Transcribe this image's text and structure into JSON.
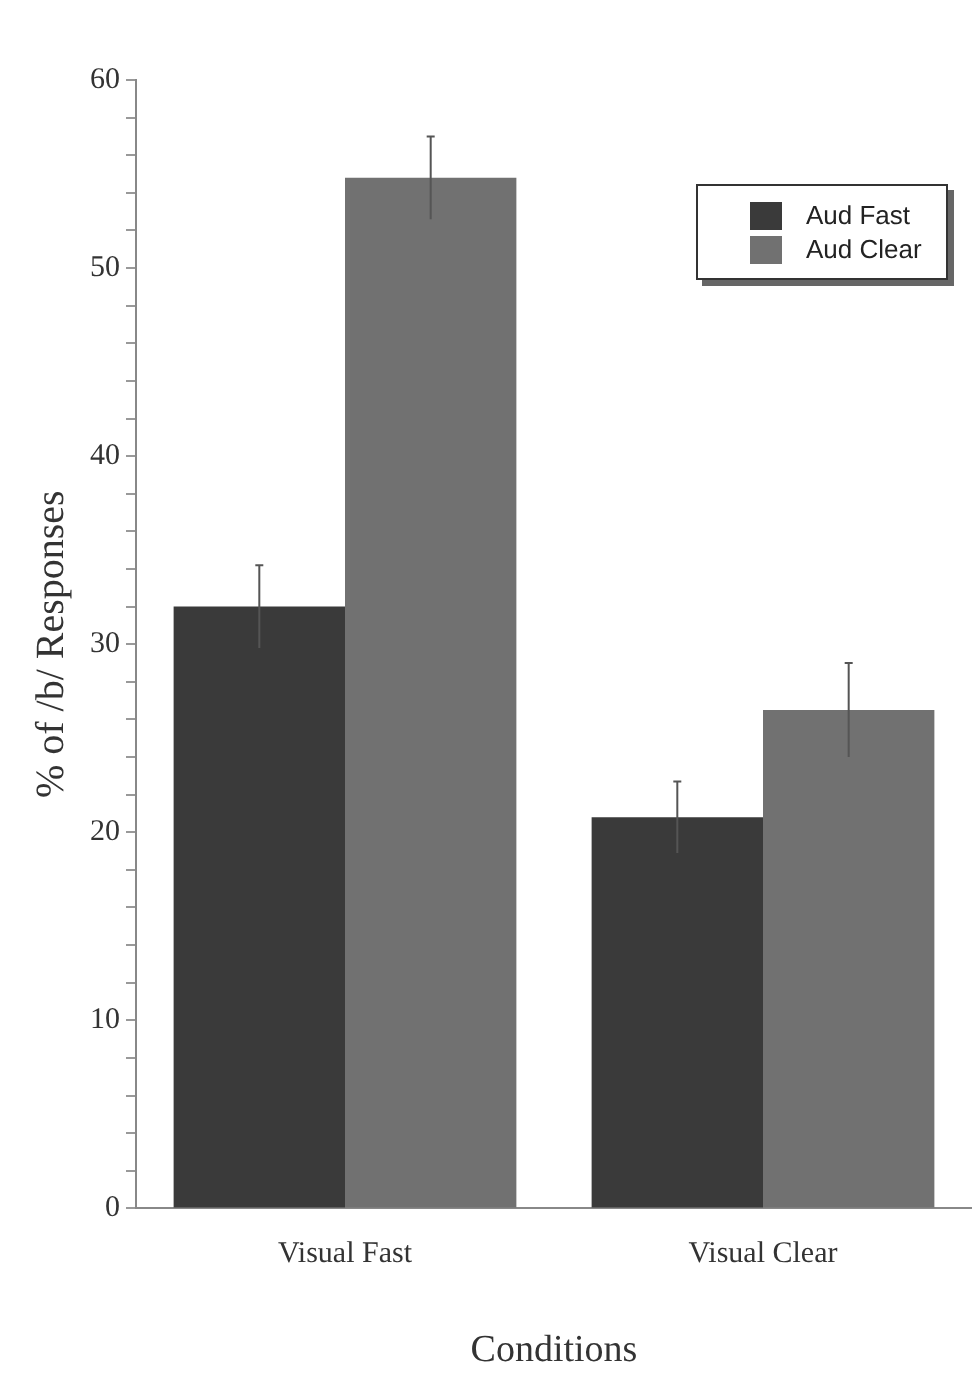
{
  "chart_data": {
    "type": "bar",
    "xlabel": "Conditions",
    "ylabel": "% of /b/ Responses",
    "categories": [
      "Visual Fast",
      "Visual Clear"
    ],
    "series": [
      {
        "name": "Aud Fast",
        "color": "#3a3a3a",
        "values": [
          32.0,
          20.8
        ],
        "errors": [
          2.2,
          1.9
        ]
      },
      {
        "name": "Aud Clear",
        "color": "#717171",
        "values": [
          54.8,
          26.5
        ],
        "errors": [
          2.2,
          2.5
        ]
      }
    ],
    "ylim": [
      0,
      60
    ],
    "yticks": [
      0,
      {
        "value": 2,
        "label": null
      },
      {
        "value": 4,
        "label": null
      },
      {
        "value": 6,
        "label": null
      },
      {
        "value": 8,
        "label": null
      },
      10,
      {
        "value": 12,
        "label": null
      },
      {
        "value": 14,
        "label": null
      },
      {
        "value": 16,
        "label": null
      },
      {
        "value": 18,
        "label": null
      },
      20,
      {
        "value": 22,
        "label": null
      },
      {
        "value": 24,
        "label": null
      },
      {
        "value": 26,
        "label": null
      },
      {
        "value": 28,
        "label": null
      },
      30,
      {
        "value": 32,
        "label": null
      },
      {
        "value": 34,
        "label": null
      },
      {
        "value": 36,
        "label": null
      },
      {
        "value": 38,
        "label": null
      },
      40,
      {
        "value": 42,
        "label": null
      },
      {
        "value": 44,
        "label": null
      },
      {
        "value": 46,
        "label": null
      },
      {
        "value": 48,
        "label": null
      },
      50,
      {
        "value": 52,
        "label": null
      },
      {
        "value": 54,
        "label": null
      },
      {
        "value": 56,
        "label": null
      },
      {
        "value": 58,
        "label": null
      },
      60
    ],
    "grid": false,
    "legend": "top right"
  }
}
